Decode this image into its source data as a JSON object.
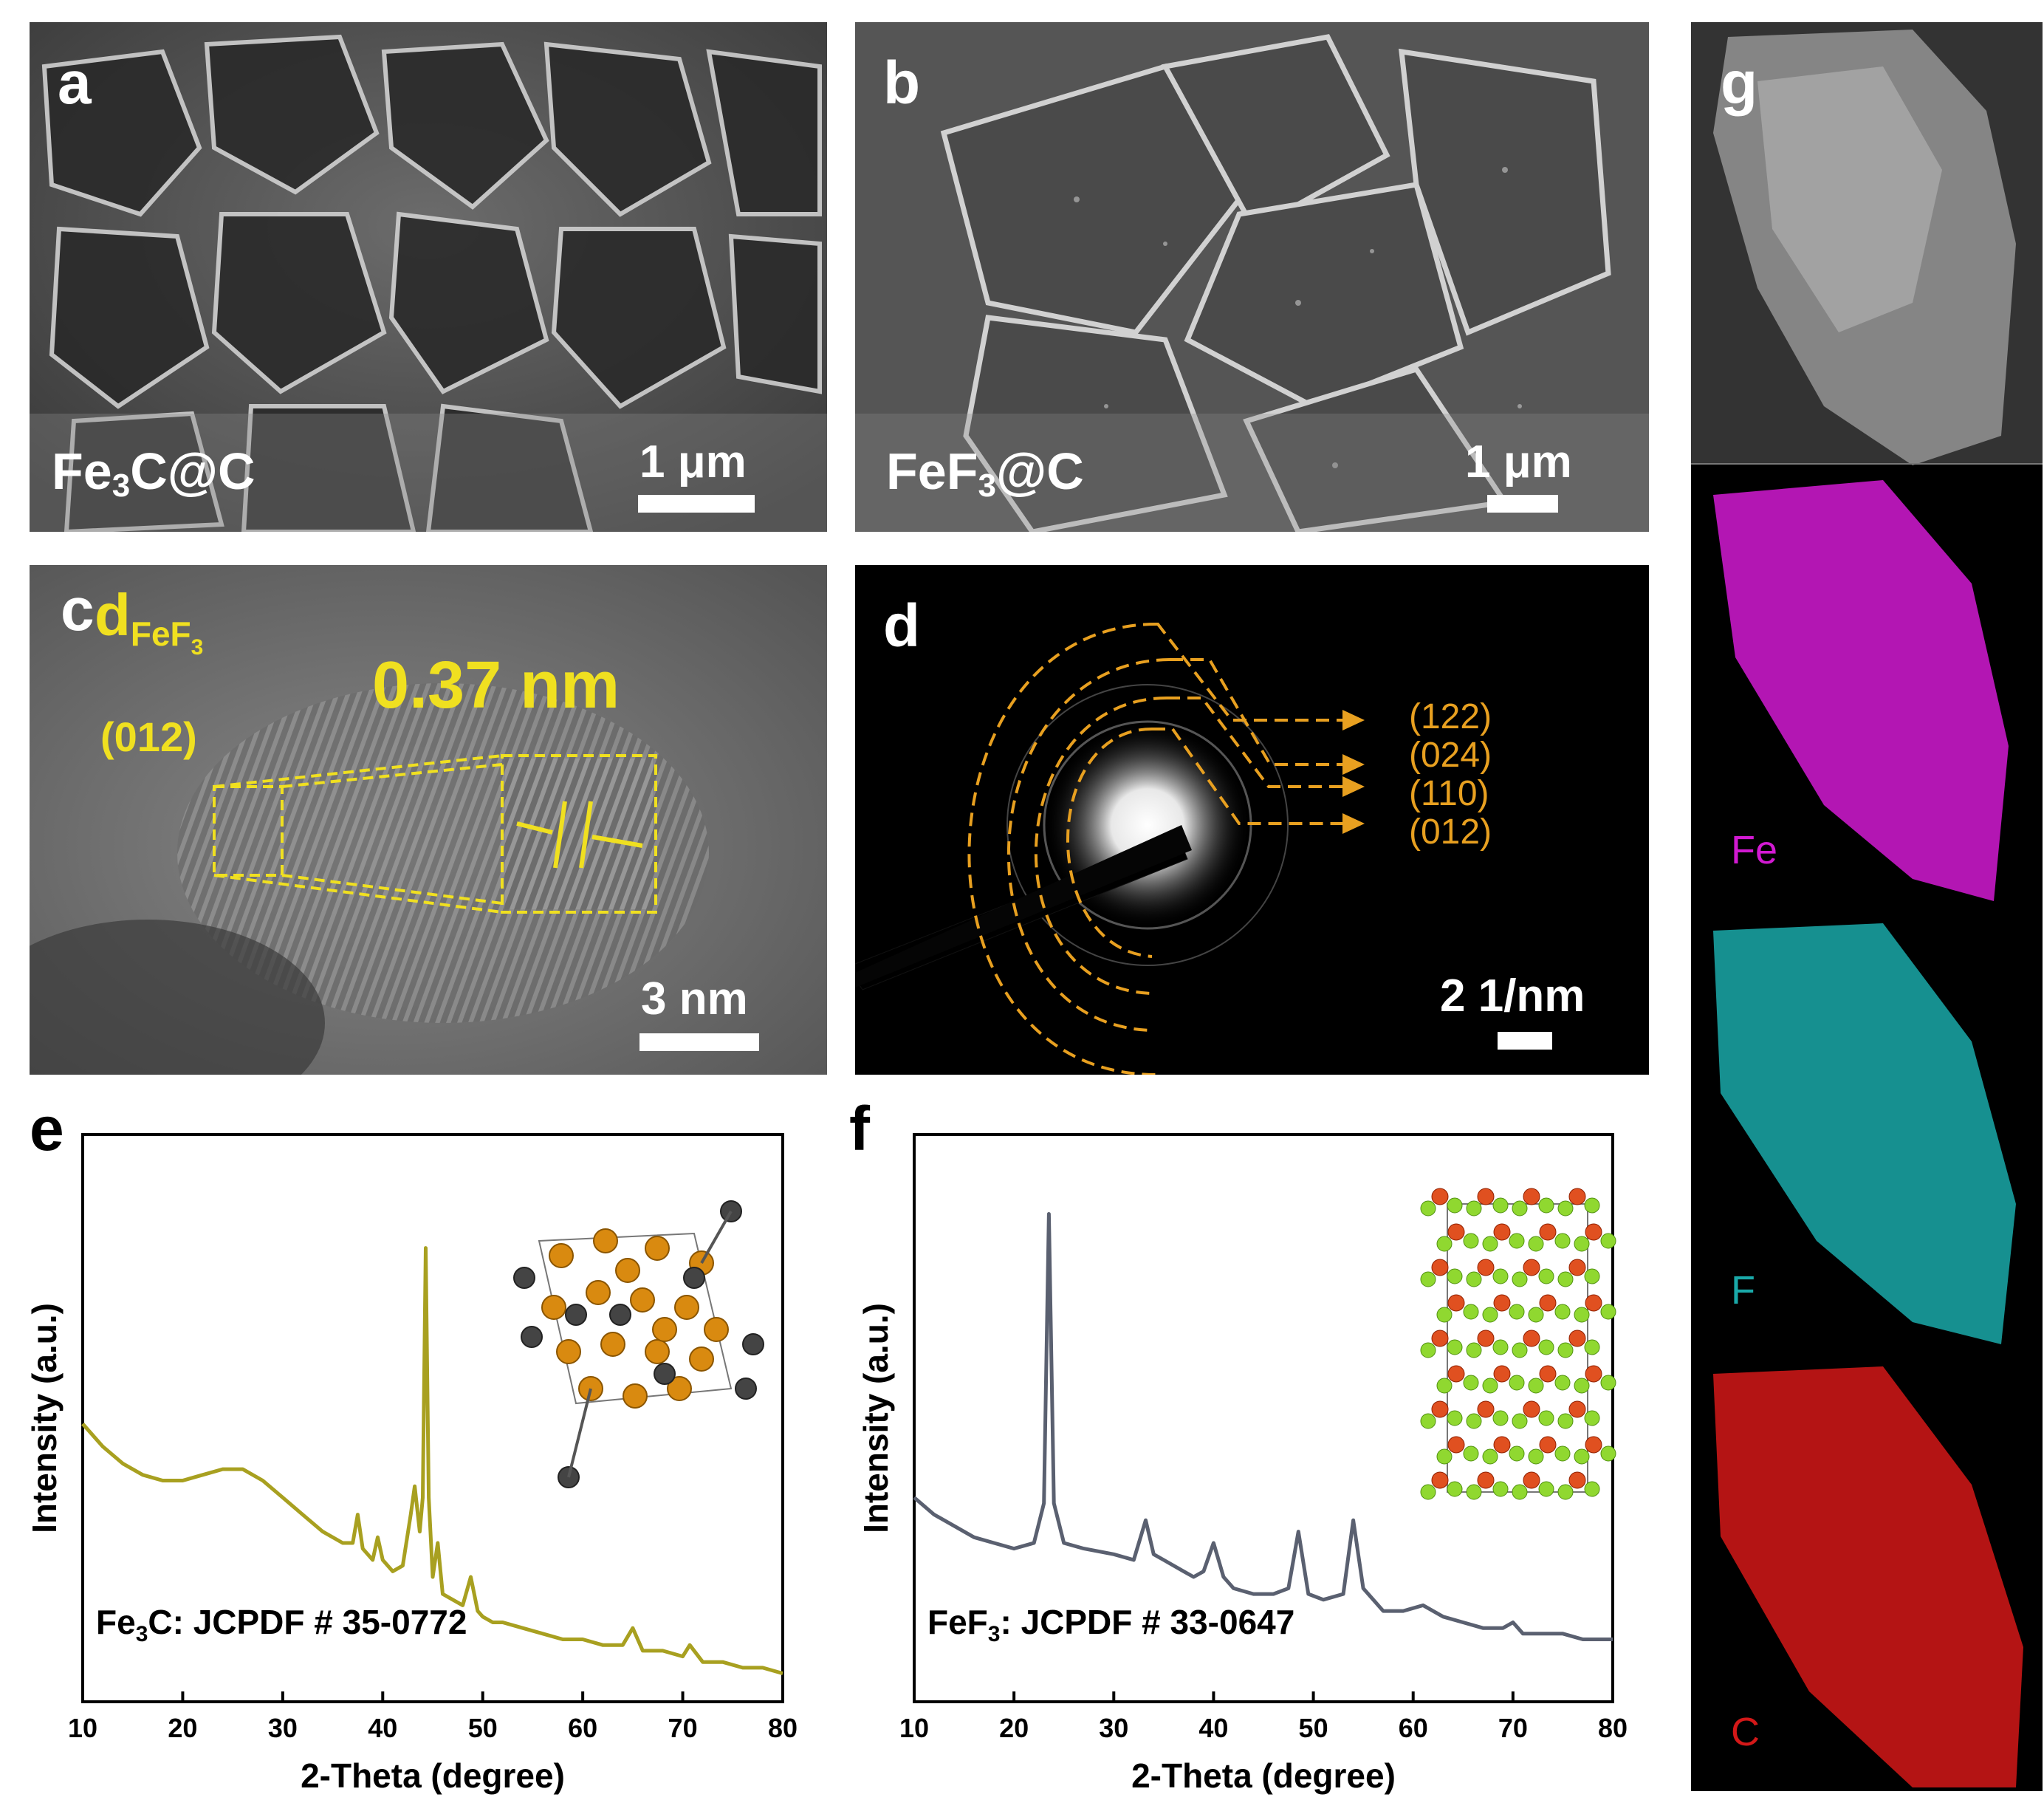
{
  "panels": {
    "a": {
      "letter": "a",
      "sample_label_main": "Fe",
      "sample_label_sub": "3",
      "sample_label_tail": "C@C",
      "scale_bar": "1 μm"
    },
    "b": {
      "letter": "b",
      "sample_label_main": "FeF",
      "sample_label_sub": "3",
      "sample_label_tail": "@C",
      "scale_bar": "1 μm"
    },
    "c": {
      "letter": "c",
      "d_main": "d",
      "d_sub": "FeF",
      "d_sub_sub": "3",
      "plane": "(012)",
      "spacing": "0.37 nm",
      "scale_bar": "3 nm"
    },
    "d": {
      "letter": "d",
      "rings": [
        "(122)",
        "(024)",
        "(110)",
        "(012)"
      ],
      "scale_bar": "2 1/nm"
    },
    "e": {
      "letter": "e"
    },
    "f": {
      "letter": "f"
    },
    "g": {
      "letter": "g",
      "maps": [
        {
          "element": "Fe",
          "color": "#d21ad2"
        },
        {
          "element": "F",
          "color": "#1aa9a9"
        },
        {
          "element": "C",
          "color": "#d41818"
        }
      ]
    }
  },
  "colors": {
    "yellow_annot": "#f0e020",
    "orange_ring": "#e8a020",
    "fe3c_line": "#a8a020",
    "fef3_line": "#5a6070"
  },
  "chart_data": [
    {
      "type": "line",
      "panel": "e",
      "xlabel": "2-Theta (degree)",
      "ylabel": "Intensity (a.u.)",
      "xlim": [
        10,
        80
      ],
      "xticks": [
        10,
        20,
        30,
        40,
        50,
        60,
        70,
        80
      ],
      "ylim": [
        0,
        1
      ],
      "annotation_main": "Fe",
      "annotation_sub": "3",
      "annotation_tail": "C:  JCPDF # 35-0772",
      "series": [
        {
          "name": "Fe3C@C",
          "x": [
            10,
            12,
            14,
            16,
            18,
            20,
            22,
            24,
            26,
            28,
            30,
            32,
            34,
            36,
            37,
            37.5,
            38,
            39,
            39.5,
            40,
            41,
            42,
            42.8,
            43.2,
            43.7,
            44,
            44.3,
            44.6,
            45,
            45.5,
            46,
            47,
            48,
            48.8,
            49.5,
            50,
            51,
            52,
            54,
            56,
            58,
            60,
            62,
            64,
            65,
            66,
            68,
            70,
            70.7,
            72,
            74,
            76,
            78,
            80
          ],
          "y": [
            0.49,
            0.45,
            0.42,
            0.4,
            0.39,
            0.39,
            0.4,
            0.41,
            0.41,
            0.39,
            0.36,
            0.33,
            0.3,
            0.28,
            0.28,
            0.33,
            0.27,
            0.25,
            0.29,
            0.25,
            0.23,
            0.24,
            0.33,
            0.38,
            0.3,
            0.36,
            0.8,
            0.36,
            0.22,
            0.28,
            0.19,
            0.18,
            0.17,
            0.22,
            0.16,
            0.15,
            0.14,
            0.14,
            0.13,
            0.12,
            0.11,
            0.11,
            0.1,
            0.1,
            0.13,
            0.09,
            0.09,
            0.08,
            0.1,
            0.07,
            0.07,
            0.06,
            0.06,
            0.05
          ]
        }
      ]
    },
    {
      "type": "line",
      "panel": "f",
      "xlabel": "2-Theta (degree)",
      "ylabel": "Intensity (a.u.)",
      "xlim": [
        10,
        80
      ],
      "xticks": [
        10,
        20,
        30,
        40,
        50,
        60,
        70,
        80
      ],
      "ylim": [
        0,
        1
      ],
      "annotation_main": "FeF",
      "annotation_sub": "3",
      "annotation_tail": ":  JCPDF # 33-0647",
      "series": [
        {
          "name": "FeF3@C",
          "x": [
            10,
            12,
            14,
            16,
            18,
            20,
            22,
            23,
            23.5,
            24,
            25,
            27,
            30,
            32,
            33.2,
            34,
            35,
            37,
            38,
            39,
            40,
            41,
            42,
            44,
            46,
            47.5,
            48.5,
            49.5,
            51,
            53,
            54,
            55,
            57,
            59,
            61,
            63,
            65,
            67,
            69,
            70,
            71,
            73,
            75,
            77,
            80
          ],
          "y": [
            0.36,
            0.33,
            0.31,
            0.29,
            0.28,
            0.27,
            0.28,
            0.35,
            0.86,
            0.35,
            0.28,
            0.27,
            0.26,
            0.25,
            0.32,
            0.26,
            0.25,
            0.23,
            0.22,
            0.23,
            0.28,
            0.22,
            0.2,
            0.19,
            0.19,
            0.2,
            0.3,
            0.19,
            0.18,
            0.19,
            0.32,
            0.2,
            0.16,
            0.16,
            0.17,
            0.15,
            0.14,
            0.13,
            0.13,
            0.14,
            0.12,
            0.12,
            0.12,
            0.11,
            0.11
          ]
        }
      ]
    }
  ]
}
